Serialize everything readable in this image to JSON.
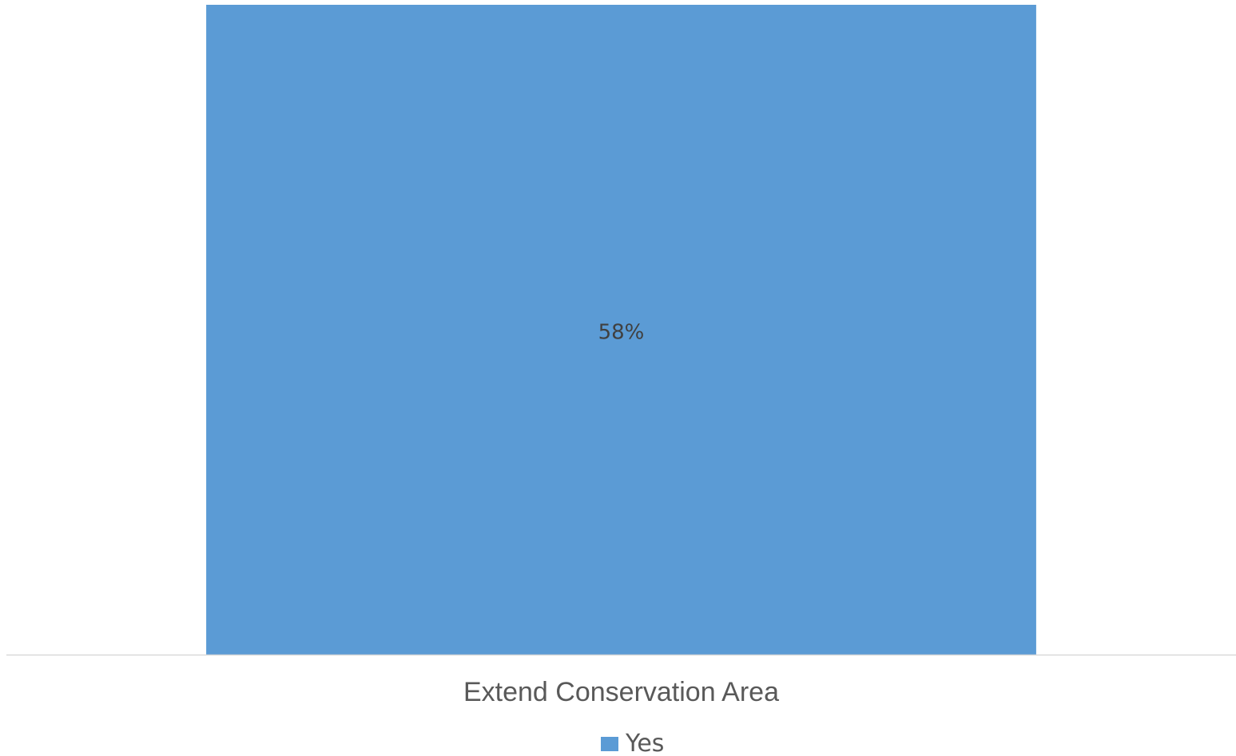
{
  "chart_data": {
    "type": "bar",
    "categories": [
      "Extend Conservation Area"
    ],
    "series": [
      {
        "name": "Yes",
        "values": [
          58
        ],
        "labels": [
          "58%"
        ],
        "color": "#5b9bd5"
      }
    ],
    "ylim": [
      0,
      58
    ],
    "grid": false,
    "legend_position": "bottom",
    "colors": {
      "axis_line": "#d9d9d9",
      "data_label": "#404040",
      "category_label": "#595959",
      "legend_text": "#595959"
    }
  }
}
